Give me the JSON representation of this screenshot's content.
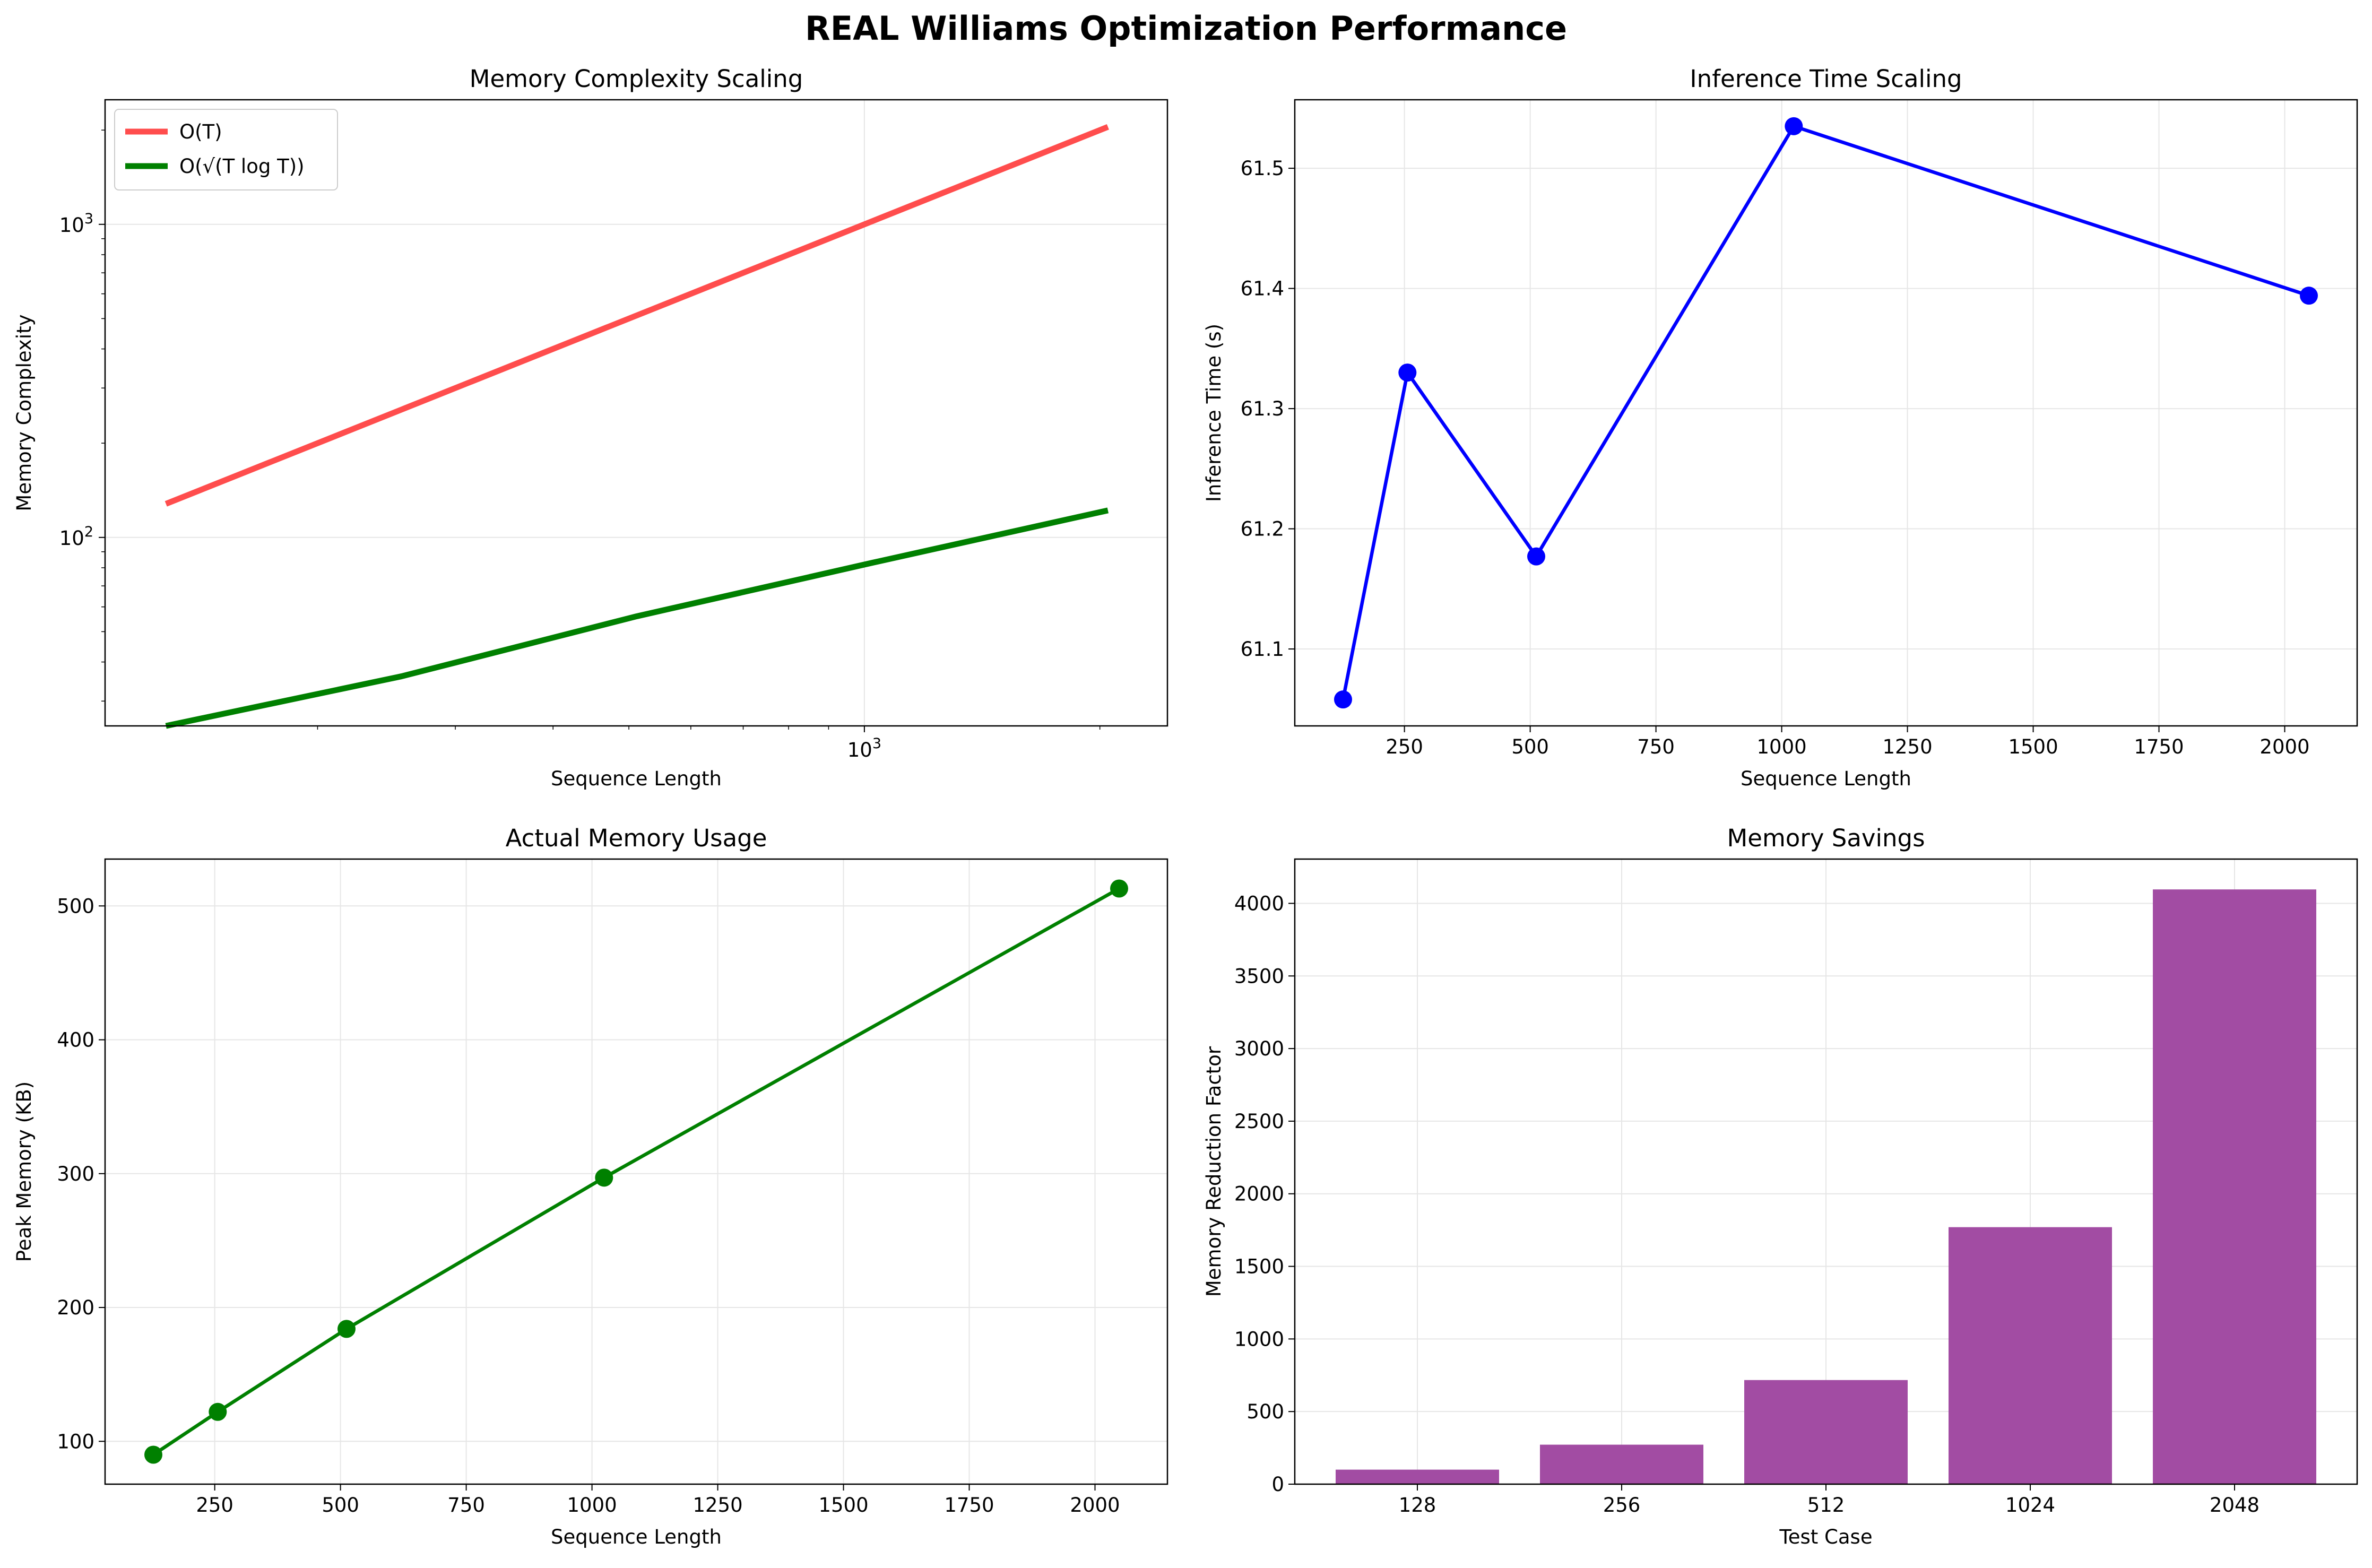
{
  "suptitle": "REAL Williams Optimization Performance",
  "chart_data": [
    {
      "type": "line",
      "title": "Memory Complexity Scaling",
      "xlabel": "Sequence Length",
      "ylabel": "Memory Complexity",
      "xscale": "log",
      "yscale": "log",
      "xlim": [
        107,
        2440
      ],
      "ylim": [
        25,
        2500
      ],
      "x": [
        128,
        256,
        512,
        1024,
        2048
      ],
      "xticks": [
        {
          "value": 1000,
          "base": "10",
          "exp": "3"
        }
      ],
      "yticks": [
        {
          "value": 100,
          "base": "10",
          "exp": "2"
        },
        {
          "value": 1000,
          "base": "10",
          "exp": "3"
        }
      ],
      "series": [
        {
          "name": "O(T)",
          "color": "#ff4d4d",
          "values": [
            128,
            256,
            512,
            1024,
            2048
          ]
        },
        {
          "name": "O(√(T log T))",
          "color": "#008000",
          "values": [
            25,
            36,
            56,
            83,
            122
          ]
        }
      ],
      "legend": "top-left",
      "grid": true
    },
    {
      "type": "line",
      "title": "Inference Time Scaling",
      "xlabel": "Sequence Length",
      "ylabel": "Inference Time (s)",
      "xlim": [
        32,
        2144
      ],
      "ylim": [
        61.036,
        61.557
      ],
      "xticks": [
        "250",
        "500",
        "750",
        "1000",
        "1250",
        "1500",
        "1750",
        "2000"
      ],
      "yticks": [
        "61.1",
        "61.2",
        "61.3",
        "61.4",
        "61.5"
      ],
      "color": "#0000ff",
      "x": [
        128,
        256,
        512,
        1024,
        2048
      ],
      "values": [
        61.058,
        61.33,
        61.177,
        61.535,
        61.394
      ],
      "grid": true
    },
    {
      "type": "line",
      "title": "Actual Memory Usage",
      "xlabel": "Sequence Length",
      "ylabel": "Peak Memory (KB)",
      "xlim": [
        32,
        2144
      ],
      "ylim": [
        68,
        535
      ],
      "xticks": [
        "250",
        "500",
        "750",
        "1000",
        "1250",
        "1500",
        "1750",
        "2000"
      ],
      "yticks": [
        "100",
        "200",
        "300",
        "400",
        "500"
      ],
      "color": "#008000",
      "x": [
        128,
        256,
        512,
        1024,
        2048
      ],
      "values": [
        90,
        122,
        184,
        297,
        513
      ],
      "grid": true
    },
    {
      "type": "bar",
      "title": "Memory Savings",
      "xlabel": "Test Case",
      "ylabel": "Memory Reduction Factor",
      "ylim": [
        0,
        4305
      ],
      "categories": [
        "128",
        "256",
        "512",
        "1024",
        "2048"
      ],
      "yticks": [
        "0",
        "500",
        "1000",
        "1500",
        "2000",
        "2500",
        "3000",
        "3500",
        "4000"
      ],
      "color": "#a24ca3",
      "values": [
        100,
        272,
        717,
        1770,
        4096
      ],
      "grid": true
    }
  ]
}
